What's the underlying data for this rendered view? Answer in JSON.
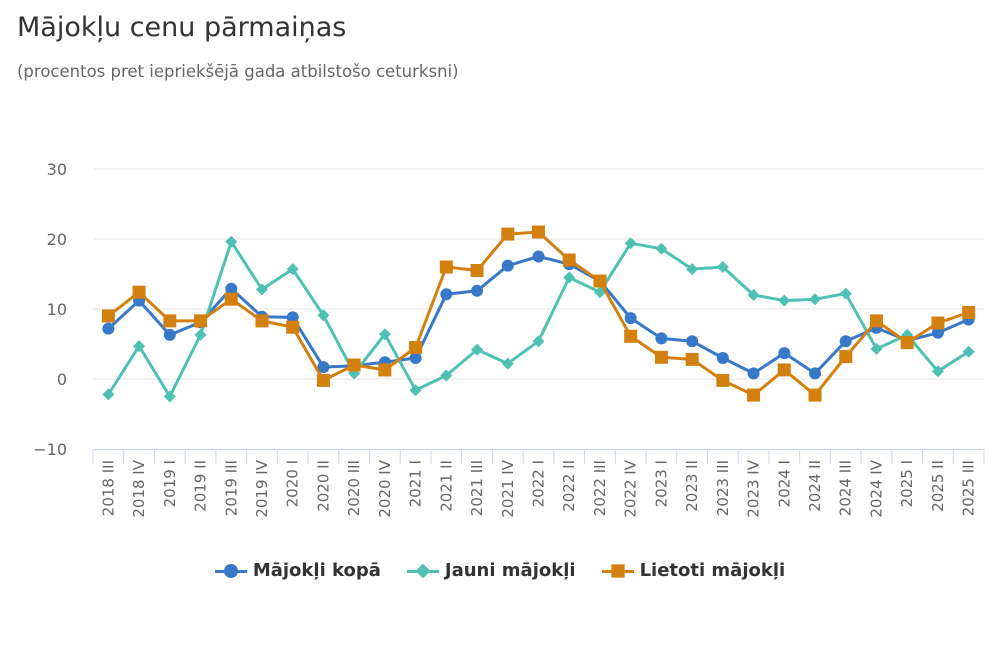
{
  "chart_data": {
    "type": "line",
    "title": "Mājokļu cenu pārmaiņas",
    "subtitle": "(procentos pret iepriekšējā gada atbilstošo ceturksni)",
    "xlabel": "",
    "ylabel": "",
    "ylim": [
      -10,
      30
    ],
    "yticks": [
      30,
      20,
      10,
      0,
      -10
    ],
    "ytick_labels": [
      "30",
      "20",
      "10",
      "0",
      "−10"
    ],
    "grid": true,
    "legend_position": "bottom",
    "categories": [
      "2018 III",
      "2018 IV",
      "2019 I",
      "2019 II",
      "2019 III",
      "2019 IV",
      "2020 I",
      "2020 II",
      "2020 III",
      "2020 IV",
      "2021 I",
      "2021 II",
      "2021 III",
      "2021 IV",
      "2022 I",
      "2022 II",
      "2022 III",
      "2022 IV",
      "2023 I",
      "2023 II",
      "2023 III",
      "2023 IV",
      "2024 I",
      "2024 II",
      "2024 III",
      "2024 IV",
      "2025 I",
      "2025 II",
      "2025 III"
    ],
    "series": [
      {
        "name": "Mājokļi kopā",
        "color": "#3778c8",
        "marker": "circle",
        "values": [
          7.2,
          11.2,
          6.3,
          8.1,
          12.9,
          8.9,
          8.8,
          1.7,
          1.9,
          2.4,
          3.0,
          12.1,
          12.6,
          16.2,
          17.5,
          16.4,
          14.0,
          8.7,
          5.8,
          5.4,
          3.0,
          0.8,
          3.7,
          0.8,
          5.4,
          7.3,
          5.5,
          6.6,
          8.5
        ]
      },
      {
        "name": "Jauni mājokļi",
        "color": "#4fc1b2",
        "marker": "diamond",
        "values": [
          -2.2,
          4.7,
          -2.5,
          6.3,
          19.6,
          12.8,
          15.7,
          9.1,
          0.8,
          6.4,
          -1.6,
          0.5,
          4.2,
          2.2,
          5.4,
          14.5,
          12.4,
          19.4,
          18.6,
          15.7,
          16.0,
          12.0,
          11.2,
          11.4,
          12.2,
          4.3,
          6.3,
          1.1,
          3.9
        ]
      },
      {
        "name": "Lietoti mājokļi",
        "color": "#d4800f",
        "marker": "square",
        "values": [
          9.0,
          12.4,
          8.3,
          8.3,
          11.4,
          8.3,
          7.4,
          -0.2,
          2.0,
          1.3,
          4.5,
          16.0,
          15.5,
          20.7,
          21.0,
          17.0,
          14.0,
          6.1,
          3.1,
          2.8,
          -0.2,
          -2.3,
          1.3,
          -2.3,
          3.2,
          8.3,
          5.2,
          8.0,
          9.5
        ]
      }
    ]
  }
}
